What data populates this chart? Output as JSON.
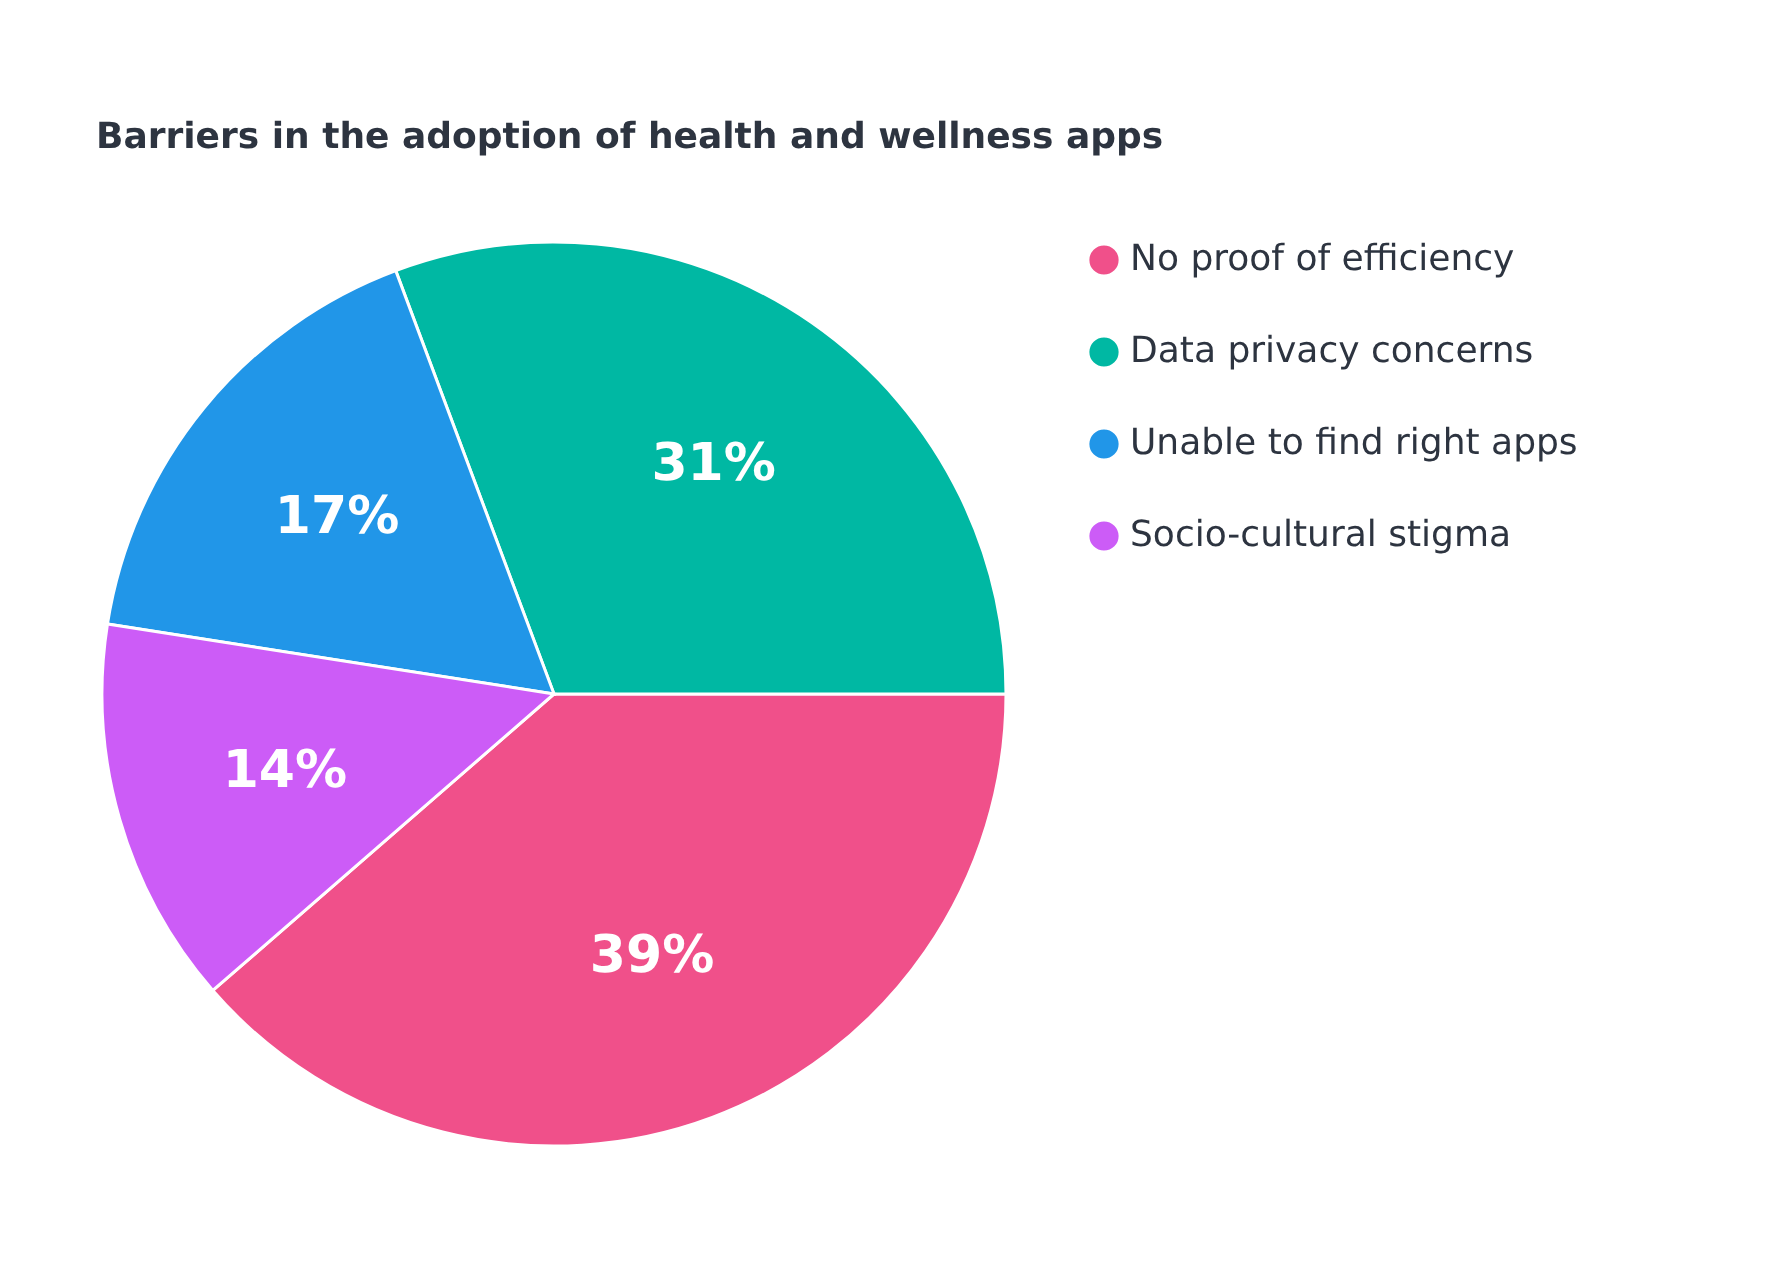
{
  "chart_data": {
    "type": "pie",
    "title": "Barriers in the adoption of health and wellness apps",
    "categories": [
      "No proof of efficiency",
      "Data privacy concerns",
      "Unable to find right apps",
      "Socio-cultural stigma"
    ],
    "values": [
      39,
      31,
      17,
      14
    ],
    "colors": [
      "#f0508a",
      "#00b8a3",
      "#2196e8",
      "#cc5cf7"
    ],
    "value_labels": [
      "39%",
      "31%",
      "17%",
      "14%"
    ],
    "legend": "right"
  }
}
